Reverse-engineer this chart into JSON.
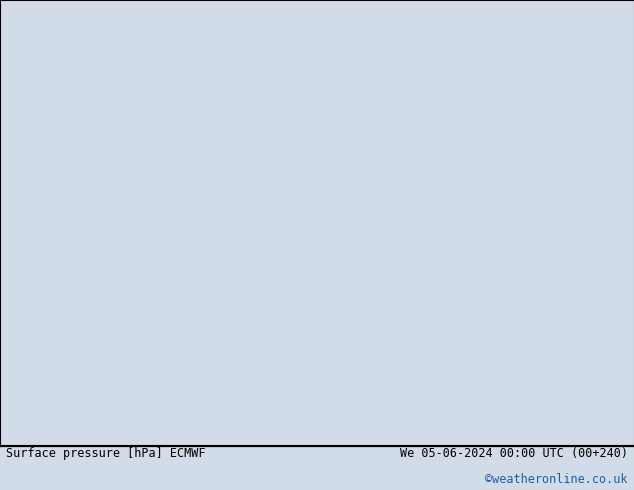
{
  "title_left": "Surface pressure [hPa] ECMWF",
  "title_right": "We 05-06-2024 00:00 UTC (00+240)",
  "copyright": "©weatheronline.co.uk",
  "bg_color": "#d2dce8",
  "land_color": "#c8e8a8",
  "ocean_color": "#d2dce8",
  "fig_width": 6.34,
  "fig_height": 4.9,
  "dpi": 100,
  "bottom_text_color": "#000000",
  "copyright_color": "#1a5fa8",
  "font_size_bottom": 8.5,
  "font_size_copyright": 8.5,
  "map_extent": [
    90,
    185,
    -58,
    8
  ]
}
